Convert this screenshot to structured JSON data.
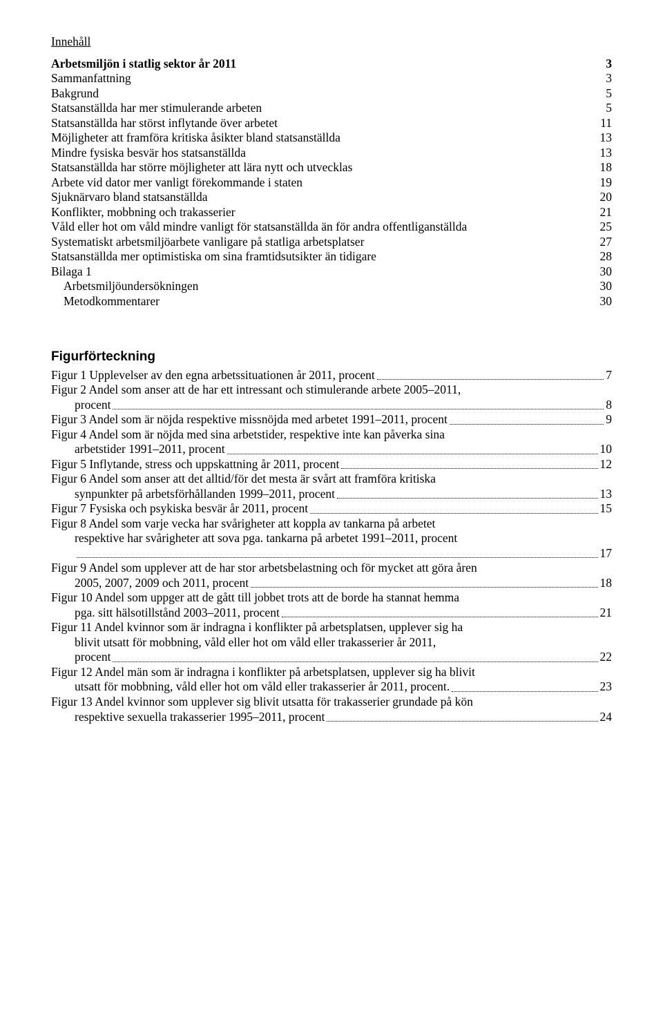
{
  "title": "Innehåll",
  "toc": {
    "heading": {
      "label": "Arbetsmiljön i statlig sektor år 2011",
      "page": "3"
    },
    "items": [
      {
        "label": "Sammanfattning",
        "page": "3"
      },
      {
        "label": "Bakgrund",
        "page": "5"
      },
      {
        "label": "Statsanställda har mer stimulerande arbeten",
        "page": "5"
      },
      {
        "label": "Statsanställda har störst inflytande över arbetet",
        "page": "11"
      },
      {
        "label": "Möjligheter att framföra kritiska åsikter bland statsanställda",
        "page": "13"
      },
      {
        "label": "Mindre fysiska besvär hos statsanställda",
        "page": "13"
      },
      {
        "label": "Statsanställda har större möjligheter att lära nytt och utvecklas",
        "page": "18"
      },
      {
        "label": "Arbete vid dator mer vanligt förekommande i staten",
        "page": "19"
      },
      {
        "label": "Sjuknärvaro bland statsanställda",
        "page": "20"
      },
      {
        "label": "Konflikter, mobbning och trakasserier",
        "page": "21"
      },
      {
        "label": "Våld eller hot om våld mindre vanligt för statsanställda än för andra offentliganställda",
        "page": "25"
      },
      {
        "label": "Systematiskt arbetsmiljöarbete vanligare på statliga  arbetsplatser",
        "page": "27"
      },
      {
        "label": "Statsanställda mer optimistiska om sina framtidsutsikter än tidigare",
        "page": "28"
      },
      {
        "label": "Bilaga 1",
        "page": "30"
      }
    ],
    "subitems": [
      {
        "label": "Arbetsmiljöundersökningen",
        "page": "30"
      },
      {
        "label": "Metodkommentarer",
        "page": "30"
      }
    ]
  },
  "figlist": {
    "heading": "Figurförteckning",
    "entries": [
      {
        "first": "Figur 1 Upplevelser av den egna arbetssituationen år 2011, procent",
        "page_first": "7"
      },
      {
        "first": "Figur 2 Andel som anser att de har ett intressant och stimulerande arbete 2005–2011,",
        "cont": "procent",
        "page": "8"
      },
      {
        "first": "Figur 3 Andel som är nöjda respektive missnöjda med arbetet 1991–2011, procent",
        "page_first": "9"
      },
      {
        "first": "Figur 4 Andel som är nöjda med sina arbetstider, respektive inte kan påverka sina",
        "cont": "arbetstider 1991–2011, procent",
        "page": "10"
      },
      {
        "first": "Figur 5 Inflytande, stress och uppskattning år 2011, procent",
        "page_first": "12"
      },
      {
        "first": "Figur 6 Andel som anser att det alltid/för det mesta är svårt att framföra kritiska",
        "cont": "synpunkter på arbetsförhållanden 1999–2011, procent",
        "page": "13"
      },
      {
        "first": "Figur 7 Fysiska och psykiska besvär år 2011, procent",
        "page_first": "15"
      },
      {
        "first": "Figur 8 Andel som varje vecka har svårigheter att koppla av tankarna på arbetet",
        "plain": "respektive har svårigheter att sova pga. tankarna på arbetet 1991–2011, procent",
        "cont": "",
        "page": "17"
      },
      {
        "first": "Figur 9 Andel som upplever att de har stor arbetsbelastning och för mycket att göra åren",
        "cont": "2005, 2007, 2009 och 2011, procent",
        "page": "18"
      },
      {
        "first": "Figur 10 Andel som uppger att de gått till jobbet trots att de borde ha stannat hemma",
        "cont": "pga. sitt hälsotillstånd 2003–2011, procent",
        "page": "21"
      },
      {
        "first": "Figur 11 Andel kvinnor som är indragna i konflikter på arbetsplatsen, upplever sig ha",
        "plain": "blivit utsatt för mobbning, våld eller hot om våld eller trakasserier år 2011,",
        "cont": "procent",
        "page": "22"
      },
      {
        "first": "Figur 12 Andel män som är indragna i konflikter på arbetsplatsen, upplever sig ha blivit",
        "cont": "utsatt för mobbning, våld eller hot om våld eller trakasserier år 2011, procent.",
        "page": "23"
      },
      {
        "first": "Figur 13 Andel kvinnor som upplever sig blivit utsatta för trakasserier grundade på kön",
        "cont": "respektive sexuella trakasserier 1995–2011, procent",
        "page": "24"
      }
    ]
  }
}
